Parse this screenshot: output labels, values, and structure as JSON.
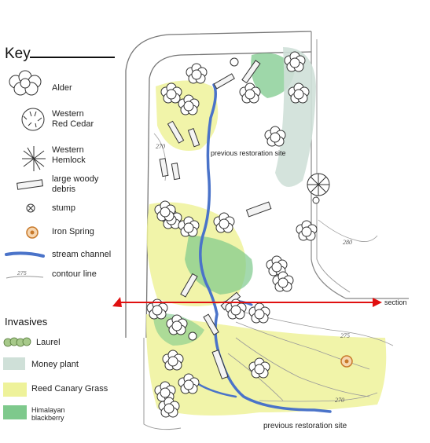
{
  "key": {
    "title": "Key",
    "items": [
      {
        "label": "Alder",
        "icon": "alder-tree-icon"
      },
      {
        "label": "Western\nRed Cedar",
        "icon": "red-cedar-icon"
      },
      {
        "label": "Western\nHemlock",
        "icon": "hemlock-icon"
      },
      {
        "label": "large woody\ndebris",
        "icon": "woody-debris-icon"
      },
      {
        "label": "stump",
        "icon": "stump-icon"
      },
      {
        "label": "Iron Spring",
        "icon": "iron-spring-icon"
      },
      {
        "label": "stream channel",
        "icon": "stream-channel-icon"
      },
      {
        "label": "contour line",
        "icon": "contour-line-icon",
        "sample": "275"
      }
    ]
  },
  "invasives": {
    "title": "Invasives",
    "items": [
      {
        "label": "Laurel",
        "color": "#8fb86a"
      },
      {
        "label": "Money plant",
        "color": "#cfe0d8"
      },
      {
        "label": "Reed Canary Grass",
        "color": "#eef29a"
      },
      {
        "label": "Himalayan\nblackberry",
        "color": "#7ec98c"
      }
    ]
  },
  "map": {
    "labels": {
      "previous_restoration_top": "previous restoration site",
      "previous_restoration_bottom": "previous restoration site",
      "section": "section"
    },
    "contours": [
      "270",
      "280",
      "275",
      "270"
    ],
    "colors": {
      "stream": "#4a73c9",
      "section_line": "#e01010",
      "reed_canary": "#eef29a",
      "blackberry": "#7ec98c",
      "money_plant": "#cfe0d8",
      "iron_spring": "#c8792a"
    }
  }
}
